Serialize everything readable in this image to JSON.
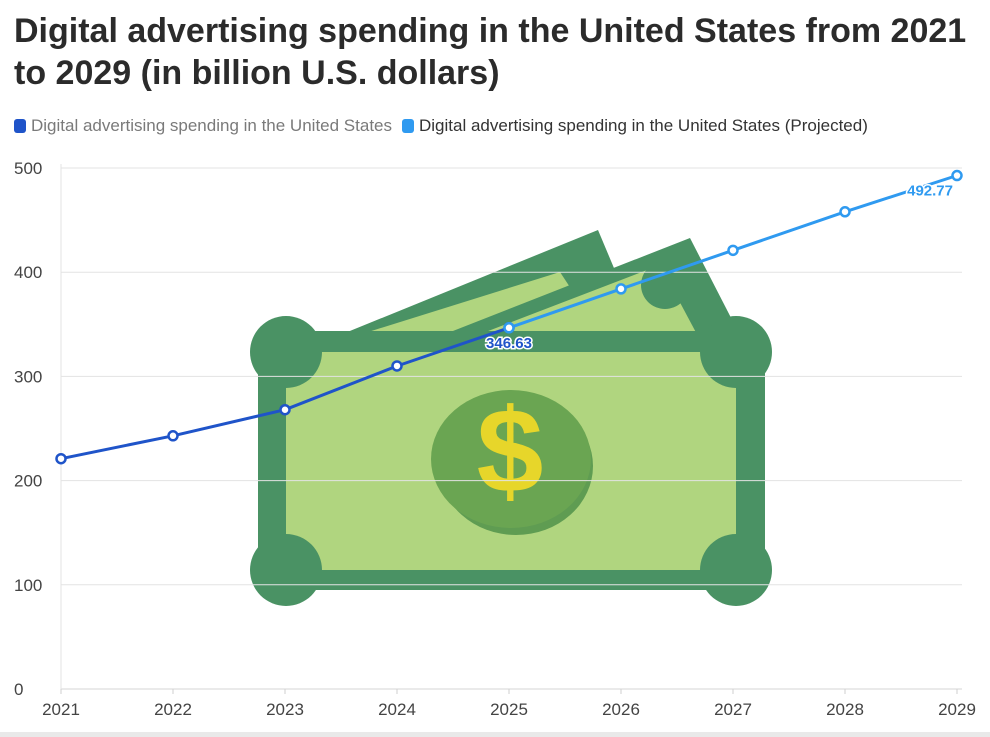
{
  "title": "Digital advertising spending in the United States from 2021 to 2029 (in billion U.S. dollars)",
  "legend": [
    {
      "label": "Digital advertising spending in the United States",
      "color": "#1f54c9"
    },
    {
      "label": "Digital advertising spending in the United States (Projected)",
      "color": "#2f9af0"
    }
  ],
  "chart_data": {
    "type": "line",
    "x": [
      "2021",
      "2022",
      "2023",
      "2024",
      "2025",
      "2026",
      "2027",
      "2028",
      "2029"
    ],
    "series": [
      {
        "name": "Digital advertising spending in the United States",
        "values": [
          221,
          243,
          268,
          310,
          346.63,
          null,
          null,
          null,
          null
        ],
        "color": "#1f54c9"
      },
      {
        "name": "Digital advertising spending in the United States (Projected)",
        "values": [
          null,
          null,
          null,
          null,
          346.63,
          384,
          421,
          458,
          492.77
        ],
        "color": "#2f9af0"
      }
    ],
    "ylim": [
      0,
      500
    ],
    "yticks": [
      0,
      100,
      200,
      300,
      400,
      500
    ],
    "grid": true,
    "legend_position": "top-left",
    "data_labels": [
      {
        "x": "2025",
        "value": "346.63",
        "color": "#1f54c9"
      },
      {
        "x": "2029",
        "value": "492.77",
        "color": "#2f9af0"
      }
    ]
  }
}
